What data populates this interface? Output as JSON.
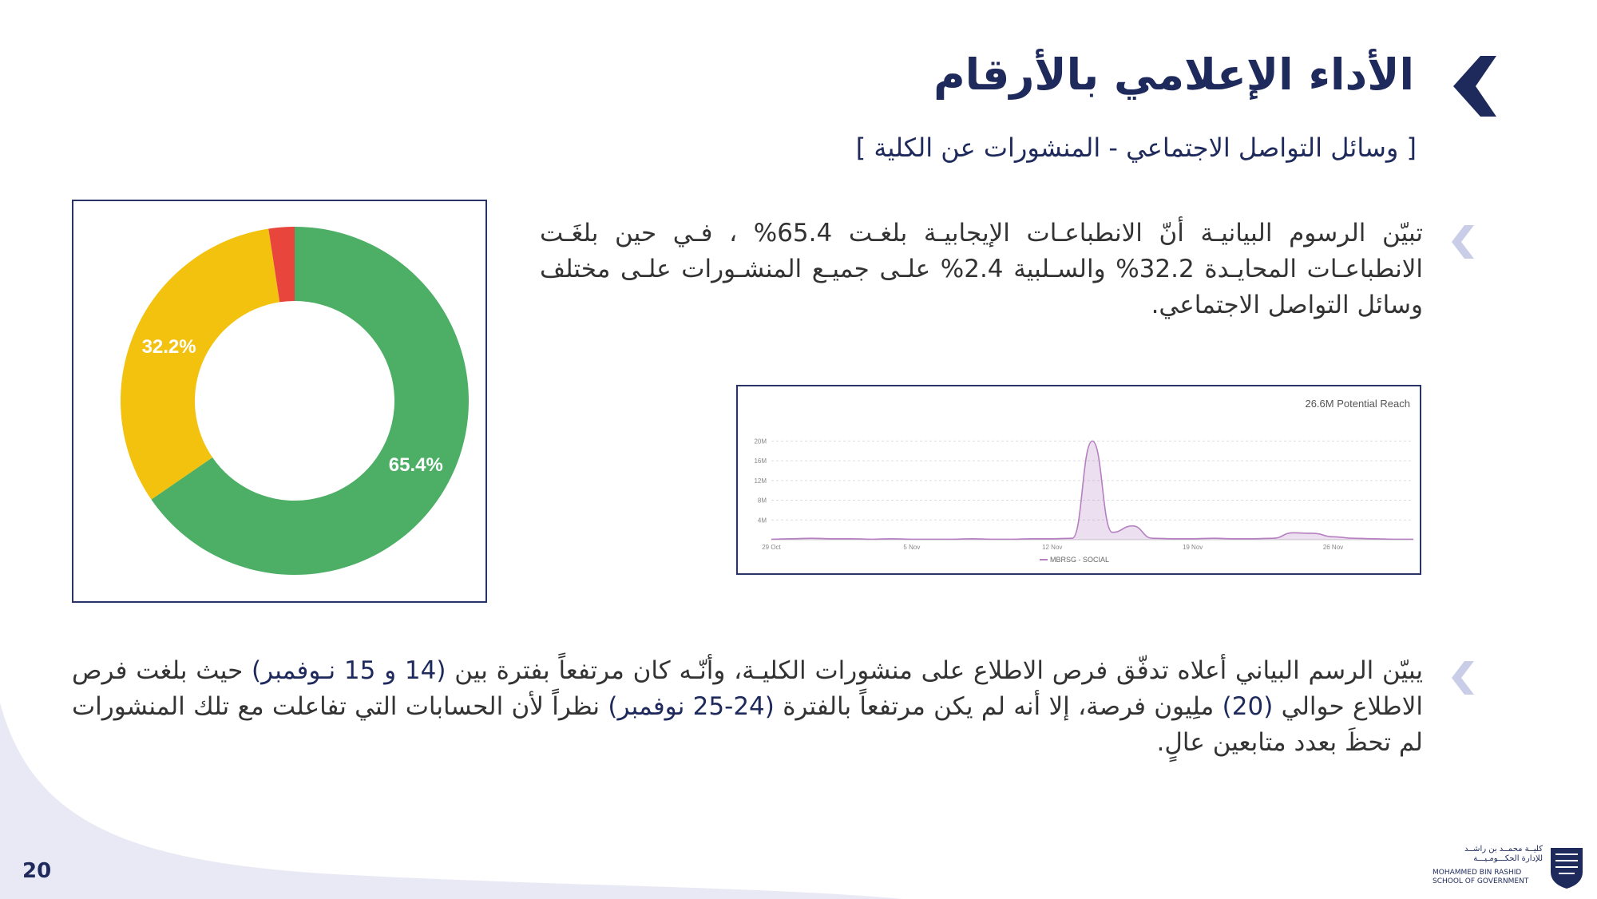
{
  "header": {
    "title": "الأداء الإعلامي بالأرقام",
    "subtitle": "[  وسائل التواصل الاجتماعي - المنشورات عن الكلية ]"
  },
  "paragraph1": {
    "text": "تبيّن الرسوم البيانيـة أنّ الانطباعـات الإيجابيـة بلغـت 65.4% ، فـي حين بلغَـت الانطباعـات المحايـدة 32.2% والسـلبية 2.4% علـى جميـع المنشـورات علـى مختلف وسائل التواصل الاجتماعي."
  },
  "paragraph2": {
    "part1": "يبيّن الرسم البياني أعلاه تدفّق فرص الاطلاع على منشورات الكليـة، وأنّـه كان مرتفعاً بفترة بين ",
    "hl1": "(14 و 15 نـوفمبر)",
    "part2": " حيث بلغت فرص الاطلاع حوالي ",
    "hl2": "(20)",
    "part3": " ملِيون فرصة، إلا أنه لم يكن مرتفعاً بالفترة ",
    "hl3": "(24-25 نوفمبر)",
    "part4": " نظراً لأن الحسابات التي تفاعلت مع تلك المنشورات لم تحظَ بعدد متابعين عالٍ."
  },
  "chart_data": [
    {
      "type": "pie",
      "variant": "donut",
      "categories": [
        "Positive",
        "Neutral",
        "Negative"
      ],
      "values": [
        65.4,
        32.2,
        2.4
      ],
      "labels": [
        "65.4%",
        "32.2%",
        ""
      ],
      "colors": [
        "#4caf65",
        "#f2c20e",
        "#e8453c"
      ]
    },
    {
      "type": "area",
      "annotation": "26.6M Potential Reach",
      "series": [
        {
          "name": "MBRSG - SOCIAL",
          "color": "#b57fc0"
        }
      ],
      "x": [
        "29 Oct",
        "30 Oct",
        "31 Oct",
        "1 Nov",
        "2 Nov",
        "3 Nov",
        "4 Nov",
        "5 Nov",
        "6 Nov",
        "7 Nov",
        "8 Nov",
        "9 Nov",
        "10 Nov",
        "11 Nov",
        "12 Nov",
        "13 Nov",
        "14 Nov",
        "15 Nov",
        "16 Nov",
        "17 Nov",
        "18 Nov",
        "19 Nov",
        "20 Nov",
        "21 Nov",
        "22 Nov",
        "23 Nov",
        "24 Nov",
        "25 Nov",
        "26 Nov",
        "27 Nov",
        "28 Nov",
        "29 Nov",
        "30 Nov"
      ],
      "y": [
        0.1,
        0.2,
        0.3,
        0.2,
        0.2,
        0.1,
        0.2,
        0.1,
        0.1,
        0.1,
        0.2,
        0.1,
        0.1,
        0.2,
        0.2,
        0.3,
        20,
        1.5,
        2.8,
        0.3,
        0.2,
        0.2,
        0.3,
        0.2,
        0.2,
        0.3,
        1.4,
        1.3,
        0.6,
        0.3,
        0.2,
        0.1,
        0.1
      ],
      "yticks": [
        "4M",
        "8M",
        "12M",
        "16M",
        "20M"
      ],
      "ylim": [
        0,
        22
      ],
      "xticks": [
        "29 Oct",
        "5 Nov",
        "12 Nov",
        "19 Nov",
        "26 Nov"
      ],
      "legend": "bottom"
    }
  ],
  "footer": {
    "page_number": "20",
    "logo_ar_line1": "كليــة محمــد بن راشــد",
    "logo_ar_line2": "للإدارة الحكـــومـيـــة",
    "logo_en_line1": "MOHAMMED BIN RASHID",
    "logo_en_line2": "SCHOOL OF GOVERNMENT"
  },
  "colors": {
    "primary": "#1f2a5c",
    "bullet": "#c9cde8",
    "wave": "#e8e9f4"
  }
}
